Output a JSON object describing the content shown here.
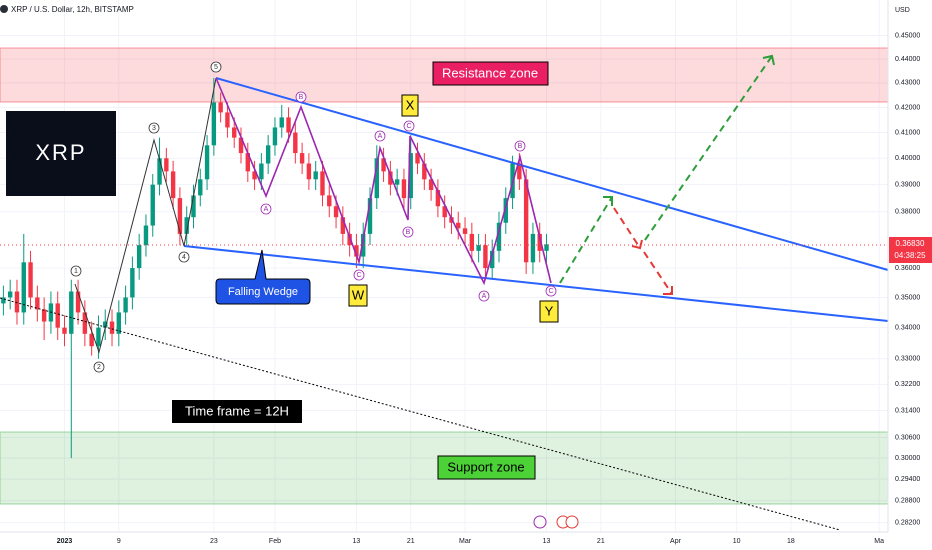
{
  "chart_data": {
    "type": "candlestick",
    "title": "XRP / U.S. Dollar, 12h, BITSTAMP",
    "y_axis_label": "USD",
    "log_scale": true,
    "up_color": "#089981",
    "down_color": "#f23645",
    "xlim": [
      -9.5,
      121.3
    ],
    "ylim": [
      0.28,
      0.455
    ],
    "xticks": [
      {
        "value": 0,
        "label": "2023"
      },
      {
        "value": 8,
        "label": "9"
      },
      {
        "value": 22,
        "label": "23"
      },
      {
        "value": 31,
        "label": "Feb"
      },
      {
        "value": 43,
        "label": "13"
      },
      {
        "value": 51,
        "label": "21"
      },
      {
        "value": 59,
        "label": "Mar"
      },
      {
        "value": 71,
        "label": "13"
      },
      {
        "value": 79,
        "label": "21"
      },
      {
        "value": 90,
        "label": "Apr"
      },
      {
        "value": 99,
        "label": "10"
      },
      {
        "value": 107,
        "label": "18"
      },
      {
        "value": 120,
        "label": "Ma"
      }
    ],
    "yticks": [
      {
        "value": 0.45,
        "label": "0.45000"
      },
      {
        "value": 0.44,
        "label": "0.44000"
      },
      {
        "value": 0.43,
        "label": "0.43000"
      },
      {
        "value": 0.42,
        "label": "0.42000"
      },
      {
        "value": 0.41,
        "label": "0.41000"
      },
      {
        "value": 0.4,
        "label": "0.40000"
      },
      {
        "value": 0.39,
        "label": "0.39000"
      },
      {
        "value": 0.38,
        "label": "0.38000"
      },
      {
        "value": 0.36,
        "label": "0.36000"
      },
      {
        "value": 0.35,
        "label": "0.35000"
      },
      {
        "value": 0.34,
        "label": "0.34000"
      },
      {
        "value": 0.33,
        "label": "0.33000"
      },
      {
        "value": 0.322,
        "label": "0.32200"
      },
      {
        "value": 0.314,
        "label": "0.31400"
      },
      {
        "value": 0.306,
        "label": "0.30600"
      },
      {
        "value": 0.3,
        "label": "0.30000"
      },
      {
        "value": 0.294,
        "label": "0.29400"
      },
      {
        "value": 0.288,
        "label": "0.28800"
      },
      {
        "value": 0.282,
        "label": "0.28200"
      }
    ],
    "x": [
      -9,
      -8,
      -7,
      -6,
      -5,
      -4,
      -3,
      -2,
      -1,
      0,
      1,
      2,
      3,
      4,
      5,
      6,
      7,
      8,
      9,
      10,
      11,
      12,
      13,
      14,
      15,
      16,
      17,
      18,
      19,
      20,
      21,
      22,
      23,
      24,
      25,
      26,
      27,
      28,
      29,
      30,
      31,
      32,
      33,
      34,
      35,
      36,
      37,
      38,
      39,
      40,
      41,
      42,
      43,
      44,
      45,
      46,
      47,
      48,
      49,
      50,
      51,
      52,
      53,
      54,
      55,
      56,
      57,
      58,
      59,
      60,
      61,
      62,
      63,
      64,
      65,
      66,
      67,
      68,
      69,
      70,
      71
    ],
    "open": [
      0.348,
      0.35,
      0.352,
      0.345,
      0.362,
      0.35,
      0.346,
      0.342,
      0.348,
      0.34,
      0.338,
      0.352,
      0.345,
      0.338,
      0.334,
      0.34,
      0.342,
      0.338,
      0.345,
      0.35,
      0.36,
      0.368,
      0.375,
      0.39,
      0.4,
      0.395,
      0.385,
      0.372,
      0.378,
      0.386,
      0.392,
      0.405,
      0.422,
      0.418,
      0.412,
      0.408,
      0.402,
      0.395,
      0.392,
      0.398,
      0.405,
      0.412,
      0.416,
      0.41,
      0.402,
      0.398,
      0.392,
      0.395,
      0.386,
      0.382,
      0.378,
      0.372,
      0.368,
      0.364,
      0.372,
      0.385,
      0.4,
      0.395,
      0.39,
      0.392,
      0.385,
      0.402,
      0.398,
      0.392,
      0.388,
      0.382,
      0.378,
      0.376,
      0.374,
      0.372,
      0.366,
      0.368,
      0.36,
      0.366,
      0.376,
      0.385,
      0.398,
      0.392,
      0.362,
      0.372,
      0.366
    ],
    "high": [
      0.354,
      0.356,
      0.356,
      0.372,
      0.366,
      0.354,
      0.35,
      0.352,
      0.352,
      0.344,
      0.356,
      0.356,
      0.349,
      0.342,
      0.344,
      0.346,
      0.346,
      0.349,
      0.354,
      0.364,
      0.372,
      0.379,
      0.394,
      0.408,
      0.404,
      0.399,
      0.389,
      0.382,
      0.39,
      0.396,
      0.409,
      0.432,
      0.426,
      0.422,
      0.416,
      0.412,
      0.406,
      0.399,
      0.402,
      0.409,
      0.416,
      0.421,
      0.42,
      0.414,
      0.406,
      0.402,
      0.399,
      0.399,
      0.39,
      0.386,
      0.382,
      0.376,
      0.372,
      0.376,
      0.389,
      0.405,
      0.404,
      0.399,
      0.396,
      0.396,
      0.409,
      0.406,
      0.402,
      0.396,
      0.392,
      0.386,
      0.382,
      0.38,
      0.378,
      0.376,
      0.372,
      0.372,
      0.37,
      0.38,
      0.389,
      0.401,
      0.402,
      0.396,
      0.376,
      0.376,
      0.372
    ],
    "low": [
      0.344,
      0.346,
      0.341,
      0.341,
      0.346,
      0.342,
      0.336,
      0.338,
      0.336,
      0.334,
      0.3,
      0.341,
      0.334,
      0.331,
      0.33,
      0.336,
      0.334,
      0.334,
      0.341,
      0.346,
      0.356,
      0.364,
      0.371,
      0.386,
      0.391,
      0.381,
      0.368,
      0.368,
      0.374,
      0.382,
      0.388,
      0.401,
      0.414,
      0.408,
      0.404,
      0.398,
      0.391,
      0.388,
      0.388,
      0.394,
      0.401,
      0.408,
      0.406,
      0.398,
      0.394,
      0.388,
      0.388,
      0.382,
      0.378,
      0.374,
      0.368,
      0.364,
      0.36,
      0.36,
      0.368,
      0.381,
      0.391,
      0.386,
      0.386,
      0.381,
      0.381,
      0.394,
      0.388,
      0.384,
      0.378,
      0.374,
      0.372,
      0.37,
      0.368,
      0.362,
      0.362,
      0.356,
      0.356,
      0.362,
      0.372,
      0.381,
      0.388,
      0.358,
      0.358,
      0.362,
      0.362
    ],
    "close": [
      0.35,
      0.352,
      0.345,
      0.362,
      0.35,
      0.346,
      0.342,
      0.348,
      0.34,
      0.338,
      0.352,
      0.345,
      0.338,
      0.334,
      0.34,
      0.342,
      0.338,
      0.345,
      0.35,
      0.36,
      0.368,
      0.375,
      0.39,
      0.4,
      0.395,
      0.385,
      0.372,
      0.378,
      0.386,
      0.392,
      0.405,
      0.422,
      0.418,
      0.412,
      0.408,
      0.402,
      0.395,
      0.392,
      0.398,
      0.405,
      0.412,
      0.416,
      0.41,
      0.402,
      0.398,
      0.392,
      0.395,
      0.386,
      0.382,
      0.378,
      0.372,
      0.368,
      0.364,
      0.372,
      0.385,
      0.4,
      0.395,
      0.39,
      0.392,
      0.385,
      0.402,
      0.398,
      0.392,
      0.388,
      0.382,
      0.378,
      0.376,
      0.374,
      0.372,
      0.366,
      0.368,
      0.36,
      0.366,
      0.376,
      0.385,
      0.398,
      0.392,
      0.362,
      0.372,
      0.366,
      0.3683
    ],
    "last_price_label": "0.36830",
    "countdown": "04:38:25",
    "zones": [
      "Resistance zone",
      "Support zone"
    ],
    "pattern_label": "Falling Wedge",
    "timeframe_note": "Time frame = 12H",
    "logo_text": "XRP",
    "impulse_labels": [
      "1",
      "2",
      "3",
      "4",
      "5"
    ],
    "corrective_labels": [
      "A",
      "B",
      "C",
      "A",
      "B",
      "C",
      "A",
      "B",
      "C"
    ],
    "structure_labels": [
      "W",
      "X",
      "Y"
    ]
  }
}
